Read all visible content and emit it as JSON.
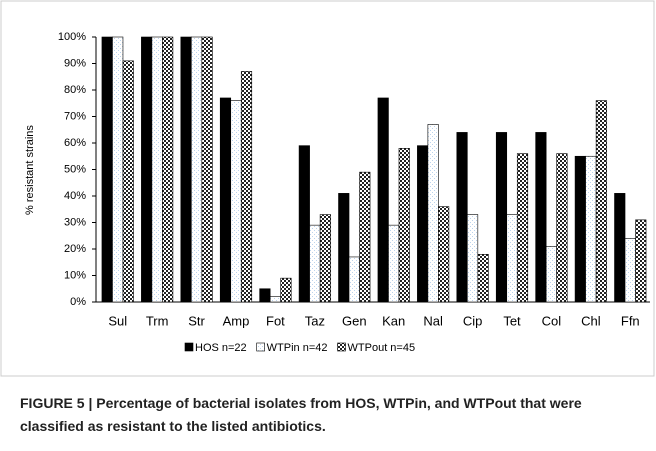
{
  "chart_data": {
    "type": "bar",
    "ylabel": "% resistant strains",
    "categories": [
      "Sul",
      "Trm",
      "Str",
      "Amp",
      "Fot",
      "Taz",
      "Gen",
      "Kan",
      "Nal",
      "Cip",
      "Tet",
      "Col",
      "Chl",
      "Ffn"
    ],
    "series": [
      {
        "name": "HOS n=22",
        "color": "#000000",
        "values": [
          100,
          100,
          100,
          77,
          5,
          59,
          41,
          77,
          59,
          64,
          64,
          64,
          55,
          41
        ]
      },
      {
        "name": "WTPin n=42",
        "color": "#bcd3ec",
        "values": [
          100,
          100,
          100,
          76,
          2,
          29,
          17,
          29,
          67,
          33,
          33,
          21,
          55,
          24
        ]
      },
      {
        "name": "WTPout n=45",
        "color": "#222222",
        "values": [
          91,
          100,
          100,
          87,
          9,
          33,
          49,
          58,
          36,
          18,
          56,
          56,
          76,
          31
        ]
      }
    ],
    "ylim": [
      0,
      100
    ],
    "yticks": [
      {
        "value": 0,
        "label": "0%"
      },
      {
        "value": 10,
        "label": "10%"
      },
      {
        "value": 20,
        "label": "20%"
      },
      {
        "value": 30,
        "label": "30%"
      },
      {
        "value": 40,
        "label": "40%"
      },
      {
        "value": 50,
        "label": "50%"
      },
      {
        "value": 60,
        "label": "60%"
      },
      {
        "value": 70,
        "label": "70%"
      },
      {
        "value": 80,
        "label": "80%"
      },
      {
        "value": 90,
        "label": "90%"
      },
      {
        "value": 100,
        "label": "100%"
      }
    ],
    "legend": "bottom"
  },
  "caption": "FIGURE 5 | Percentage of bacterial isolates from HOS, WTPin, and WTPout that were classified as resistant to the listed antibiotics."
}
